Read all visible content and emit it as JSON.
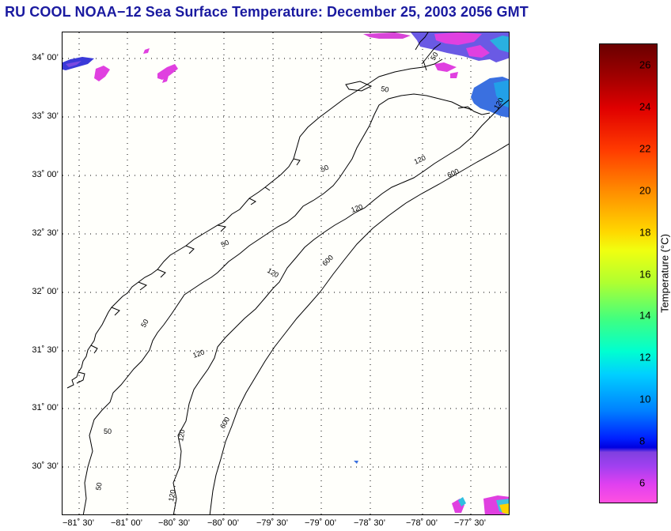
{
  "title": "RU COOL  NOAA−12  Sea Surface Temperature:  December 25, 2003 2056 GMT",
  "map": {
    "lat_labels": [
      "34˚ 00’",
      "33˚ 30’",
      "33˚ 00’",
      "32˚ 30’",
      "32˚ 00’",
      "31˚ 30’",
      "31˚ 00’",
      "30˚ 30’"
    ],
    "lon_labels": [
      "−81˚ 30’",
      "−81˚ 00’",
      "−80˚ 30’",
      "−80˚ 00’",
      "−79˚ 30’",
      "−79˚ 00’",
      "−78˚ 30’",
      "−78˚ 00’",
      "−77˚ 30’"
    ],
    "contour_labels": [
      "50",
      "120",
      "600"
    ]
  },
  "colorbar": {
    "label": "Temperature (°C)",
    "ticks": [
      "26",
      "24",
      "22",
      "20",
      "18",
      "16",
      "14",
      "12",
      "10",
      "8",
      "6"
    ]
  }
}
